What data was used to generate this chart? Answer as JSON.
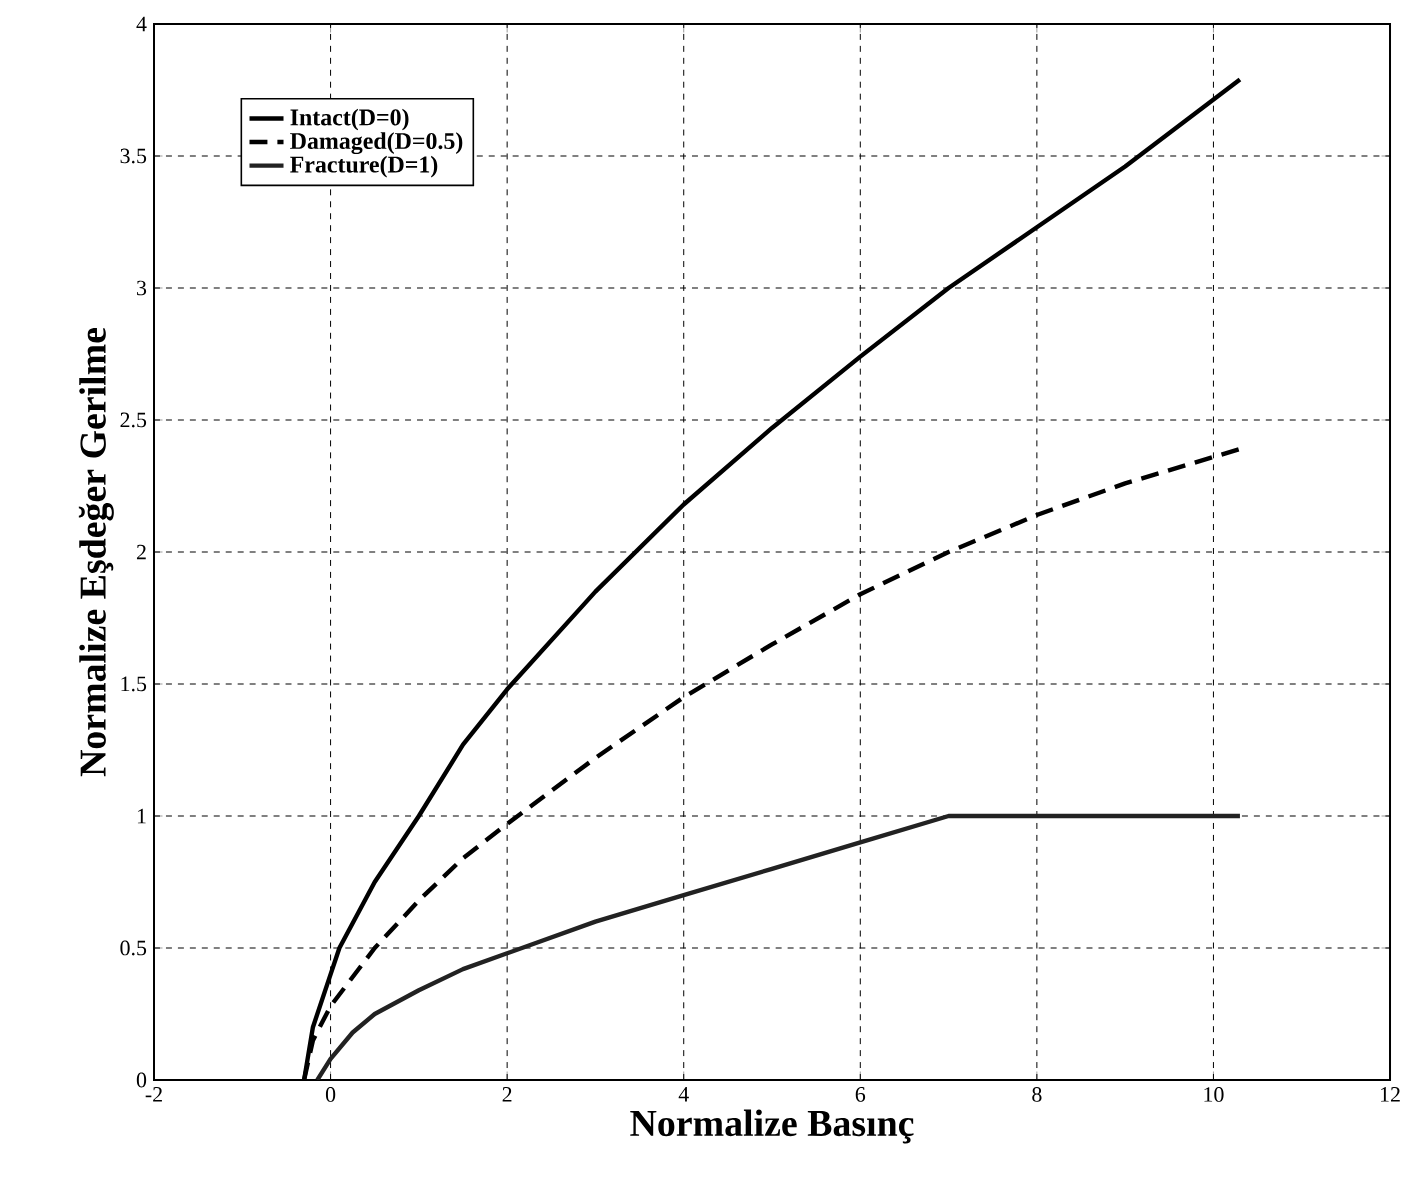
{
  "chart_data": {
    "type": "line",
    "xlabel": "Normalize Basınç",
    "ylabel": "Normalize Eşdeğer Gerilme",
    "xlim": [
      -2,
      12
    ],
    "xticks": [
      -2,
      0,
      2,
      4,
      6,
      8,
      10,
      12
    ],
    "ylim": [
      0,
      4
    ],
    "yticks": [
      0,
      0.5,
      1,
      1.5,
      2,
      2.5,
      3,
      3.5,
      4
    ],
    "grid": true,
    "legend": "top left",
    "series": [
      {
        "name": "Intact(D=0)",
        "color": "#000000",
        "line_style": "solid",
        "x": [
          -0.3,
          -0.2,
          0,
          0.1,
          0.5,
          1,
          1.5,
          2,
          3,
          4,
          5,
          6,
          7,
          8,
          9,
          10.3
        ],
        "values": [
          0,
          0.2,
          0.4,
          0.5,
          0.75,
          1.0,
          1.27,
          1.48,
          1.85,
          2.18,
          2.47,
          2.74,
          3.0,
          3.23,
          3.46,
          3.79
        ]
      },
      {
        "name": "Damaged(D=0.5)",
        "color": "#000000",
        "line_style": "dashed",
        "x": [
          -0.3,
          -0.2,
          0,
          0.5,
          1,
          1.5,
          2,
          3,
          4,
          5,
          6,
          7,
          8,
          9,
          10.3
        ],
        "values": [
          0,
          0.15,
          0.28,
          0.5,
          0.68,
          0.84,
          0.97,
          1.22,
          1.45,
          1.65,
          1.84,
          2.0,
          2.14,
          2.26,
          2.39
        ]
      },
      {
        "name": "Fracture(D=1)",
        "color": "#222222",
        "line_style": "solid",
        "x": [
          -0.15,
          0,
          0.25,
          0.5,
          1,
          1.5,
          2,
          3,
          4,
          5,
          6,
          7,
          10.3
        ],
        "values": [
          0,
          0.08,
          0.18,
          0.25,
          0.34,
          0.42,
          0.48,
          0.6,
          0.7,
          0.8,
          0.9,
          1.0,
          1.0
        ]
      }
    ]
  }
}
